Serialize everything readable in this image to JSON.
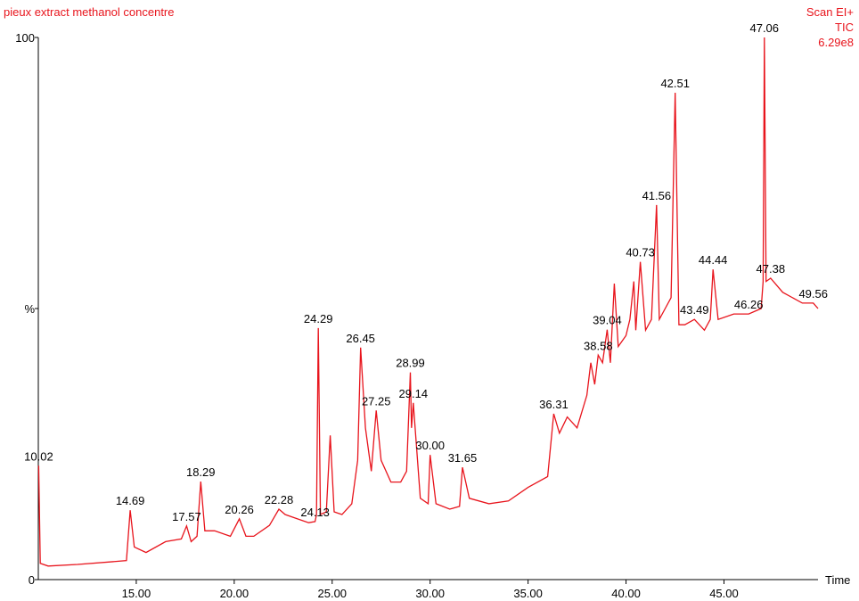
{
  "chart_data": {
    "type": "line",
    "title": "pieux extract methanol concentre",
    "subtitle": [
      "Scan EI+",
      "TIC",
      "6.29e8"
    ],
    "x_label": "Time",
    "xlim": [
      10.0,
      49.8
    ],
    "ylim": [
      0,
      100
    ],
    "xticks": [
      {
        "value": 15,
        "label": "15.00"
      },
      {
        "value": 20,
        "label": "20.00"
      },
      {
        "value": 25,
        "label": "25.00"
      },
      {
        "value": 30,
        "label": "30.00"
      },
      {
        "value": 35,
        "label": "35.00"
      },
      {
        "value": 40,
        "label": "40.00"
      },
      {
        "value": 45,
        "label": "45.00"
      }
    ],
    "yticks": [
      0,
      {
        "value": 50,
        "label": "%"
      },
      100
    ],
    "series": [
      {
        "name": "TIC",
        "color": "#e8141c",
        "x": [
          10.02,
          10.1,
          10.5,
          12.0,
          14.5,
          14.69,
          14.9,
          15.5,
          16.5,
          17.3,
          17.57,
          17.8,
          18.1,
          18.29,
          18.5,
          19.0,
          19.8,
          20.26,
          20.6,
          21.0,
          21.8,
          22.28,
          22.6,
          23.0,
          23.8,
          24.13,
          24.2,
          24.29,
          24.4,
          24.7,
          24.9,
          25.1,
          25.5,
          26.0,
          26.3,
          26.45,
          26.7,
          27.0,
          27.25,
          27.5,
          28.0,
          28.5,
          28.8,
          28.99,
          29.05,
          29.14,
          29.5,
          29.9,
          30.0,
          30.3,
          31.0,
          31.5,
          31.65,
          32.0,
          33.0,
          34.0,
          35.0,
          36.0,
          36.31,
          36.6,
          37.0,
          37.5,
          38.0,
          38.2,
          38.4,
          38.58,
          38.8,
          39.04,
          39.2,
          39.4,
          39.6,
          40.0,
          40.2,
          40.4,
          40.5,
          40.73,
          41.0,
          41.3,
          41.56,
          41.7,
          42.0,
          42.3,
          42.51,
          42.7,
          43.0,
          43.49,
          44.0,
          44.3,
          44.44,
          44.7,
          45.5,
          46.26,
          46.9,
          47.0,
          47.06,
          47.15,
          47.38,
          48.0,
          49.0,
          49.56,
          49.8
        ],
        "values": [
          21.0,
          3.0,
          2.5,
          2.8,
          3.5,
          12.8,
          6.0,
          5.0,
          7.0,
          7.5,
          9.9,
          7.0,
          8.0,
          18.1,
          9.0,
          9.0,
          8.0,
          11.2,
          8.0,
          8.0,
          10.0,
          13.0,
          12.0,
          11.5,
          10.5,
          10.7,
          12.0,
          46.4,
          12.0,
          12.5,
          26.6,
          12.5,
          12.0,
          14.0,
          22.0,
          42.8,
          28.0,
          20.0,
          31.2,
          22.0,
          18.0,
          18.0,
          20.0,
          38.2,
          28.0,
          32.6,
          15.0,
          14.0,
          23.0,
          14.0,
          13.0,
          13.5,
          20.7,
          15.0,
          14.0,
          14.5,
          17.0,
          19.0,
          30.6,
          27.0,
          30.0,
          28.0,
          34.0,
          40.0,
          36.0,
          41.4,
          40.0,
          46.1,
          40.0,
          54.6,
          43.0,
          45.0,
          48.0,
          55.0,
          46.0,
          58.6,
          46.0,
          48.0,
          69.1,
          48.0,
          50.0,
          52.0,
          89.8,
          47.0,
          47.0,
          48.0,
          46.0,
          48.0,
          57.2,
          48.0,
          49.0,
          49.0,
          50.0,
          55.0,
          100.0,
          55.0,
          55.6,
          53.0,
          51.0,
          51.0,
          50.0
        ]
      }
    ],
    "annotations": [
      {
        "label": "10.02",
        "x": 10.02,
        "y": 21.0
      },
      {
        "label": "14.69",
        "x": 14.69,
        "y": 12.8
      },
      {
        "label": "17.57",
        "x": 17.57,
        "y": 9.9
      },
      {
        "label": "18.29",
        "x": 18.29,
        "y": 18.1
      },
      {
        "label": "20.26",
        "x": 20.26,
        "y": 11.2
      },
      {
        "label": "22.28",
        "x": 22.28,
        "y": 13.0
      },
      {
        "label": "24.13",
        "x": 24.13,
        "y": 10.7
      },
      {
        "label": "24.29",
        "x": 24.29,
        "y": 46.4
      },
      {
        "label": "26.45",
        "x": 26.45,
        "y": 42.8
      },
      {
        "label": "27.25",
        "x": 27.25,
        "y": 31.2
      },
      {
        "label": "28.99",
        "x": 28.99,
        "y": 38.2
      },
      {
        "label": "29.14",
        "x": 29.14,
        "y": 32.6
      },
      {
        "label": "30.00",
        "x": 30.0,
        "y": 23.0
      },
      {
        "label": "31.65",
        "x": 31.65,
        "y": 20.7
      },
      {
        "label": "36.31",
        "x": 36.31,
        "y": 30.6
      },
      {
        "label": "38.58",
        "x": 38.58,
        "y": 41.4
      },
      {
        "label": "39.04",
        "x": 39.04,
        "y": 46.1
      },
      {
        "label": "40.73",
        "x": 40.73,
        "y": 58.6
      },
      {
        "label": "41.56",
        "x": 41.56,
        "y": 69.1
      },
      {
        "label": "42.51",
        "x": 42.51,
        "y": 89.8
      },
      {
        "label": "43.49",
        "x": 43.49,
        "y": 48.0
      },
      {
        "label": "44.44",
        "x": 44.44,
        "y": 57.2
      },
      {
        "label": "46.26",
        "x": 46.26,
        "y": 49.0
      },
      {
        "label": "47.06",
        "x": 47.06,
        "y": 100.0
      },
      {
        "label": "47.38",
        "x": 47.38,
        "y": 55.6
      },
      {
        "label": "49.56",
        "x": 49.56,
        "y": 51.0
      }
    ]
  }
}
